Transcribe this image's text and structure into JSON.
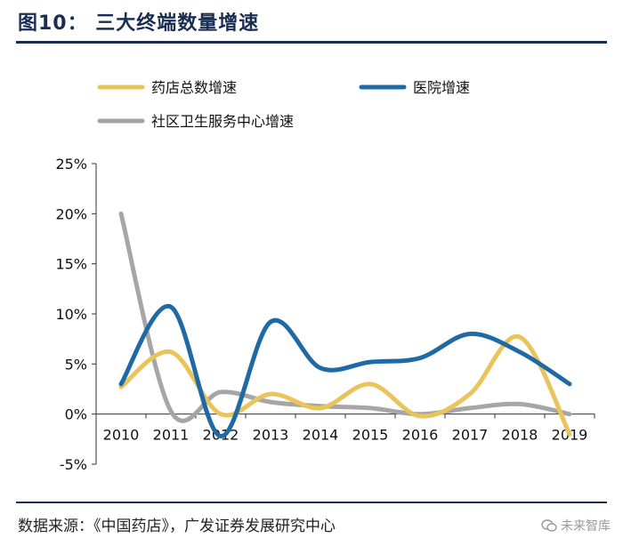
{
  "header": {
    "title": "图10：  三大终端数量增速"
  },
  "footer": {
    "source": "数据来源：《中国药店》，广发证券发展研究中心",
    "watermark": "未来智库",
    "watermark_icon": "wechat-logo-icon"
  },
  "chart_data": {
    "type": "line",
    "title": "三大终端数量增速",
    "xlabel": "",
    "ylabel": "",
    "x_tick_labels": [
      "2010",
      "2011",
      "2012",
      "2013",
      "2014",
      "2015",
      "2016",
      "2017",
      "2018",
      "2019"
    ],
    "y_tick_labels": [
      "25%",
      "20%",
      "15%",
      "10%",
      "5%",
      "0%",
      "-5%"
    ],
    "y_ticks": [
      25,
      20,
      15,
      10,
      5,
      0,
      -5
    ],
    "ylim": [
      -5,
      25
    ],
    "grid": false,
    "legend_position": "top",
    "series": [
      {
        "name": "药店总数增速",
        "color": "#e8c45a",
        "x": [
          2010.5,
          2011.5,
          2012.5,
          2013.5,
          2014.5,
          2015.5,
          2016.5,
          2017.5,
          2018.5,
          2019.5
        ],
        "values": [
          2.7,
          6.2,
          0.0,
          2.0,
          0.6,
          3.0,
          -0.2,
          2.0,
          7.7,
          -2.0
        ]
      },
      {
        "name": "医院增速",
        "color": "#1f6aa5",
        "x": [
          2010.5,
          2011.5,
          2012.5,
          2013.5,
          2014.5,
          2015.5,
          2016.5,
          2017.5,
          2018.5,
          2019.5
        ],
        "values": [
          3.0,
          10.7,
          -2.2,
          9.2,
          4.6,
          5.2,
          5.6,
          8.0,
          6.2,
          3.0
        ]
      },
      {
        "name": "社区卫生服务中心增速",
        "color": "#a6a6a6",
        "x": [
          2010.5,
          2011.5,
          2012.5,
          2013.5,
          2014.5,
          2015.5,
          2016.5,
          2017.5,
          2018.5,
          2019.5
        ],
        "values": [
          20.0,
          0.3,
          2.2,
          1.2,
          0.8,
          0.6,
          0.0,
          0.6,
          1.0,
          0.0
        ]
      }
    ]
  }
}
